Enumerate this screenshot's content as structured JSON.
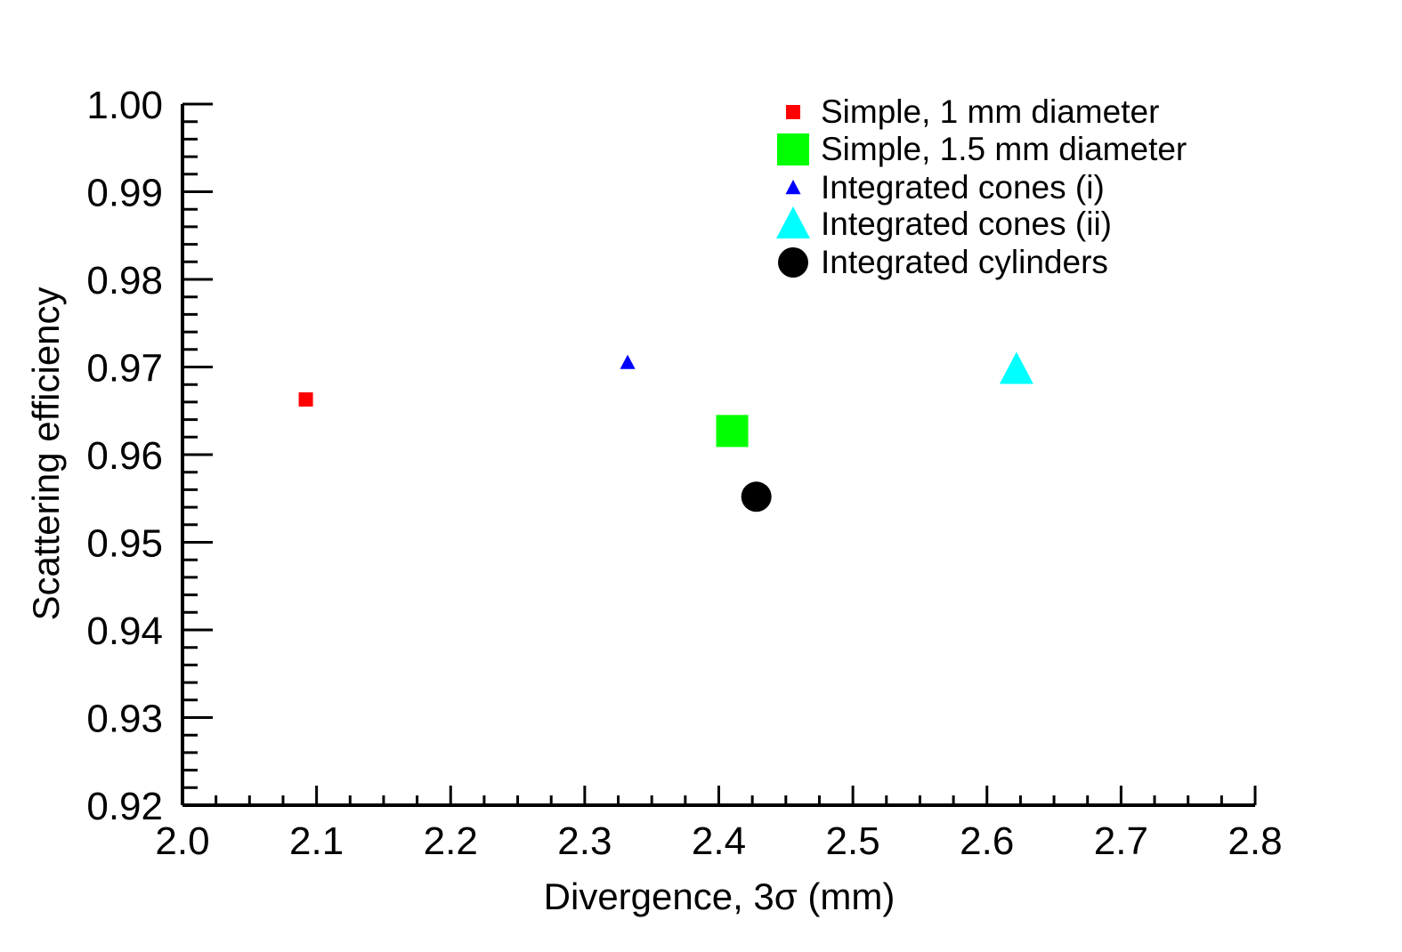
{
  "chart_data": {
    "type": "scatter",
    "xlabel": "Divergence, 3σ (mm)",
    "ylabel": "Scattering efficiency",
    "xlim": [
      2.0,
      2.8
    ],
    "ylim": [
      0.92,
      1.0
    ],
    "x_ticks": [
      "2.0",
      "2.1",
      "2.2",
      "2.3",
      "2.4",
      "2.5",
      "2.6",
      "2.7",
      "2.8"
    ],
    "y_ticks": [
      "0.92",
      "0.93",
      "0.94",
      "0.95",
      "0.96",
      "0.97",
      "0.98",
      "0.99",
      "1.00"
    ],
    "grid": false,
    "legend_position": "top-right",
    "series": [
      {
        "name": "Simple, 1 mm diameter",
        "marker": "square",
        "marker_size": "small",
        "color": "#ff0000",
        "x": [
          2.092
        ],
        "y": [
          0.9663
        ]
      },
      {
        "name": "Simple, 1.5 mm diameter",
        "marker": "square",
        "marker_size": "large",
        "color": "#00ff00",
        "x": [
          2.41
        ],
        "y": [
          0.9627
        ]
      },
      {
        "name": "Integrated cones (i)",
        "marker": "triangle",
        "marker_size": "small",
        "color": "#0000ff",
        "x": [
          2.332
        ],
        "y": [
          0.9705
        ]
      },
      {
        "name": "Integrated cones (ii)",
        "marker": "triangle",
        "marker_size": "large",
        "color": "#00ffff",
        "x": [
          2.622
        ],
        "y": [
          0.9697
        ]
      },
      {
        "name": "Integrated cylinders",
        "marker": "circle",
        "marker_size": "large",
        "color": "#000000",
        "x": [
          2.428
        ],
        "y": [
          0.9552
        ]
      }
    ]
  }
}
